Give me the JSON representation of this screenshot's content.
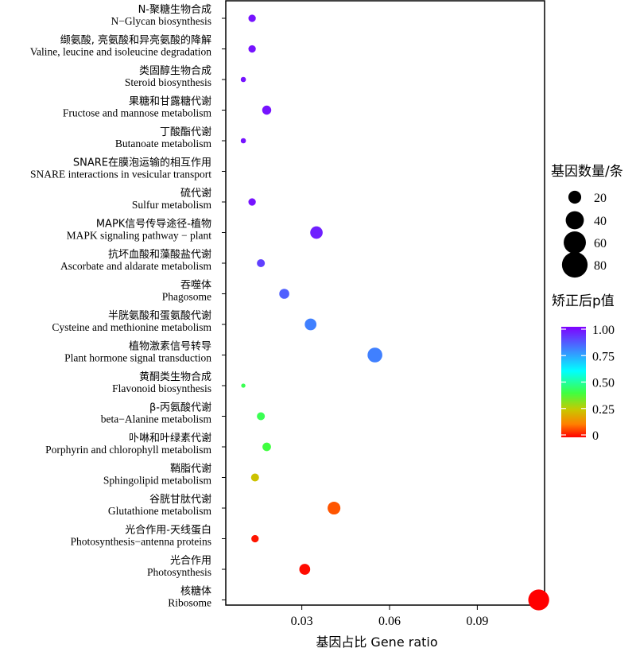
{
  "chart_data": {
    "type": "scatter",
    "xlabel": "基因占比 Gene ratio",
    "x_ticks": [
      0.03,
      0.06,
      0.09
    ],
    "x_tick_labels": [
      "0.03",
      "0.06",
      "0.09"
    ],
    "xlim": [
      0.004,
      0.113
    ],
    "categories": [
      {
        "zh": "N-聚糖生物合成",
        "en": "N−Glycan biosynthesis",
        "x": 0.013,
        "count": 6,
        "padj": 0.97
      },
      {
        "zh": "缬氨酸, 亮氨酸和异亮氨酸的降解",
        "en": "Valine, leucine and isoleucine degradation",
        "x": 0.013,
        "count": 6,
        "padj": 0.97
      },
      {
        "zh": "类固醇生物合成",
        "en": "Steroid biosynthesis",
        "x": 0.01,
        "count": 3,
        "padj": 0.97
      },
      {
        "zh": "果糖和甘露糖代谢",
        "en": "Fructose and mannose metabolism",
        "x": 0.018,
        "count": 9,
        "padj": 0.97
      },
      {
        "zh": "丁酸酯代谢",
        "en": "Butanoate metabolism",
        "x": 0.01,
        "count": 3,
        "padj": 0.97
      },
      {
        "zh": "SNARE在膜泡运输的相互作用",
        "en": "SNARE interactions in vesicular transport",
        "x": null,
        "count": null,
        "padj": null
      },
      {
        "zh": "硫代谢",
        "en": "Sulfur metabolism",
        "x": 0.013,
        "count": 6,
        "padj": 0.97
      },
      {
        "zh": "MAPK信号传导途径-植物",
        "en": "MAPK signaling pathway − plant",
        "x": 0.035,
        "count": 17,
        "padj": 0.95
      },
      {
        "zh": "抗坏血酸和藻酸盐代谢",
        "en": "Ascorbate and aldarate metabolism",
        "x": 0.016,
        "count": 7,
        "padj": 0.9
      },
      {
        "zh": "吞噬体",
        "en": "Phagosome",
        "x": 0.024,
        "count": 11,
        "padj": 0.85
      },
      {
        "zh": "半胱氨酸和蛋氨酸代谢",
        "en": "Cysteine and methionine metabolism",
        "x": 0.033,
        "count": 15,
        "padj": 0.8
      },
      {
        "zh": "植物激素信号转导",
        "en": "Plant hormone signal transduction",
        "x": 0.055,
        "count": 24,
        "padj": 0.8
      },
      {
        "zh": "黄酮类生物合成",
        "en": "Flavonoid biosynthesis",
        "x": 0.01,
        "count": 2,
        "padj": 0.42
      },
      {
        "zh": "β-丙氨酸代谢",
        "en": "beta−Alanine metabolism",
        "x": 0.016,
        "count": 7,
        "padj": 0.42
      },
      {
        "zh": "卟啉和叶绿素代谢",
        "en": "Porphyrin and chlorophyll metabolism",
        "x": 0.018,
        "count": 8,
        "padj": 0.4
      },
      {
        "zh": "鞘脂代谢",
        "en": "Sphingolipid metabolism",
        "x": 0.014,
        "count": 7,
        "padj": 0.24
      },
      {
        "zh": "谷胱甘肽代谢",
        "en": "Glutathione metabolism",
        "x": 0.041,
        "count": 18,
        "padj": 0.08
      },
      {
        "zh": "光合作用-天线蛋白",
        "en": "Photosynthesis−antenna proteins",
        "x": 0.014,
        "count": 6,
        "padj": 0.02
      },
      {
        "zh": "光合作用",
        "en": "Photosynthesis",
        "x": 0.031,
        "count": 13,
        "padj": 0.01
      },
      {
        "zh": "核糖体",
        "en": "Ribosome",
        "x": 0.111,
        "count": 48,
        "padj": 0.0
      }
    ],
    "size_legend": {
      "title": "基因数量/条",
      "values": [
        20,
        40,
        60,
        80
      ],
      "labels": [
        "20",
        "40",
        "60",
        "80"
      ]
    },
    "color_legend": {
      "title": "矫正后p值",
      "range": [
        0,
        1
      ],
      "ticks": [
        0,
        0.25,
        0.5,
        0.75,
        1.0
      ],
      "tick_labels": [
        "0",
        "0.25",
        "0.50",
        "0.75",
        "1.00"
      ]
    },
    "colors": {
      "low": "#ff0000",
      "high": "#7f00ff"
    },
    "grid": false,
    "legend_position": "right"
  }
}
